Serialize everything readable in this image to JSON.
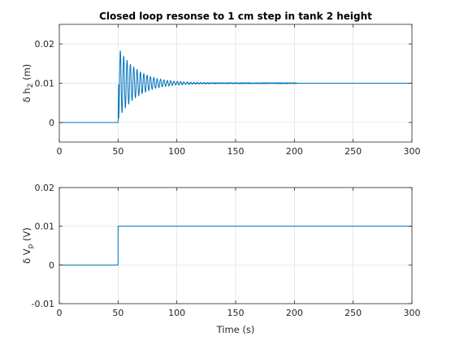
{
  "figure": {
    "background": "#ffffff",
    "line_color": "#0072bd",
    "axis_color": "#262626",
    "grid_color": "#dfdfdf"
  },
  "chart_data": [
    {
      "type": "line",
      "title": "Closed loop resonse to 1 cm step in tank 2 height",
      "xlabel": "",
      "ylabel": {
        "prefix": "δ",
        "text": " h",
        "subscript": "2",
        "suffix": " (m)"
      },
      "xlim": [
        0,
        300
      ],
      "ylim": [
        -0.005,
        0.025
      ],
      "xticks": [
        0,
        50,
        100,
        150,
        200,
        250,
        300
      ],
      "xtick_labels": [
        "0",
        "50",
        "100",
        "150",
        "200",
        "250",
        "300"
      ],
      "yticks": [
        0,
        0.01,
        0.02
      ],
      "ytick_labels": [
        "0",
        "0.01",
        "0.02"
      ],
      "grid": true,
      "series": [
        {
          "color": "#0072bd",
          "response": {
            "step_time": 50,
            "initial_value": 0,
            "final_value": 0.01,
            "first_peak": 0.019,
            "first_trough": 0.0015,
            "oscillation_period": 2.85,
            "settled_by": 145,
            "noise_until": 202,
            "end": 300
          }
        }
      ]
    },
    {
      "type": "line",
      "title": "",
      "xlabel": "Time (s)",
      "ylabel": {
        "prefix": "δ",
        "text": " V",
        "subscript": "p",
        "suffix": " (V)"
      },
      "xlim": [
        0,
        300
      ],
      "ylim": [
        -0.01,
        0.02
      ],
      "xticks": [
        0,
        50,
        100,
        150,
        200,
        250,
        300
      ],
      "xtick_labels": [
        "0",
        "50",
        "100",
        "150",
        "200",
        "250",
        "300"
      ],
      "yticks": [
        -0.01,
        0,
        0.01,
        0.02
      ],
      "ytick_labels": [
        "-0.01",
        "0",
        "0.01",
        "0.02"
      ],
      "grid": true,
      "series": [
        {
          "color": "#0072bd",
          "x": [
            0,
            50,
            50,
            300
          ],
          "y": [
            0,
            0,
            0.01,
            0.01
          ]
        }
      ]
    }
  ]
}
